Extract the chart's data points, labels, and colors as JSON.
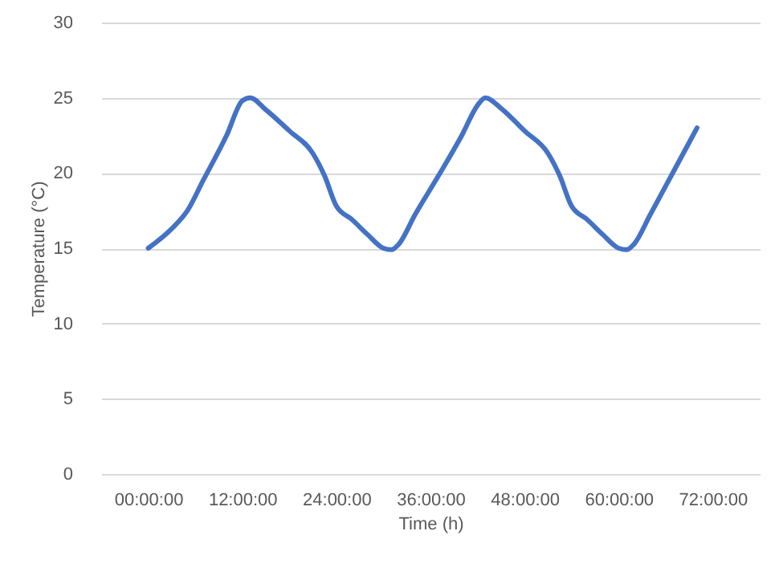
{
  "chart_data": {
    "type": "line",
    "xlabel": "Time (h)",
    "ylabel": "Temperature (°C)",
    "x": [
      0,
      3,
      5,
      7,
      10,
      12,
      13,
      15,
      18,
      21,
      22.5,
      24,
      26,
      28,
      30,
      31,
      32,
      34,
      37,
      40,
      42,
      43,
      45,
      48,
      51,
      52.5,
      54,
      56,
      58,
      60,
      61,
      62,
      64,
      67,
      70
    ],
    "series": [
      {
        "color": "#4472c4",
        "values": [
          15,
          16.3,
          17.5,
          19.5,
          22.5,
          24.8,
          25,
          24.2,
          22.8,
          21.3,
          19.8,
          17.8,
          16.9,
          15.9,
          15,
          14.9,
          15.3,
          17.2,
          19.8,
          22.5,
          24.5,
          25,
          24.3,
          22.8,
          21.3,
          19.8,
          17.8,
          16.9,
          15.9,
          15,
          14.9,
          15.3,
          17.2,
          20.1,
          23
        ]
      }
    ],
    "xlim": [
      -6,
      78
    ],
    "xticks": [
      {
        "value": 0,
        "label": "00:00:00"
      },
      {
        "value": 12,
        "label": "12:00:00"
      },
      {
        "value": 24,
        "label": "24:00:00"
      },
      {
        "value": 36,
        "label": "36:00:00"
      },
      {
        "value": 48,
        "label": "48:00:00"
      },
      {
        "value": 60,
        "label": "60:00:00"
      },
      {
        "value": 72,
        "label": "72:00:00"
      }
    ],
    "ylim": [
      0,
      30
    ],
    "yticks": [
      0,
      5,
      10,
      15,
      20,
      25,
      30
    ],
    "grid": "y",
    "marker": "none",
    "line_style": "solid"
  }
}
